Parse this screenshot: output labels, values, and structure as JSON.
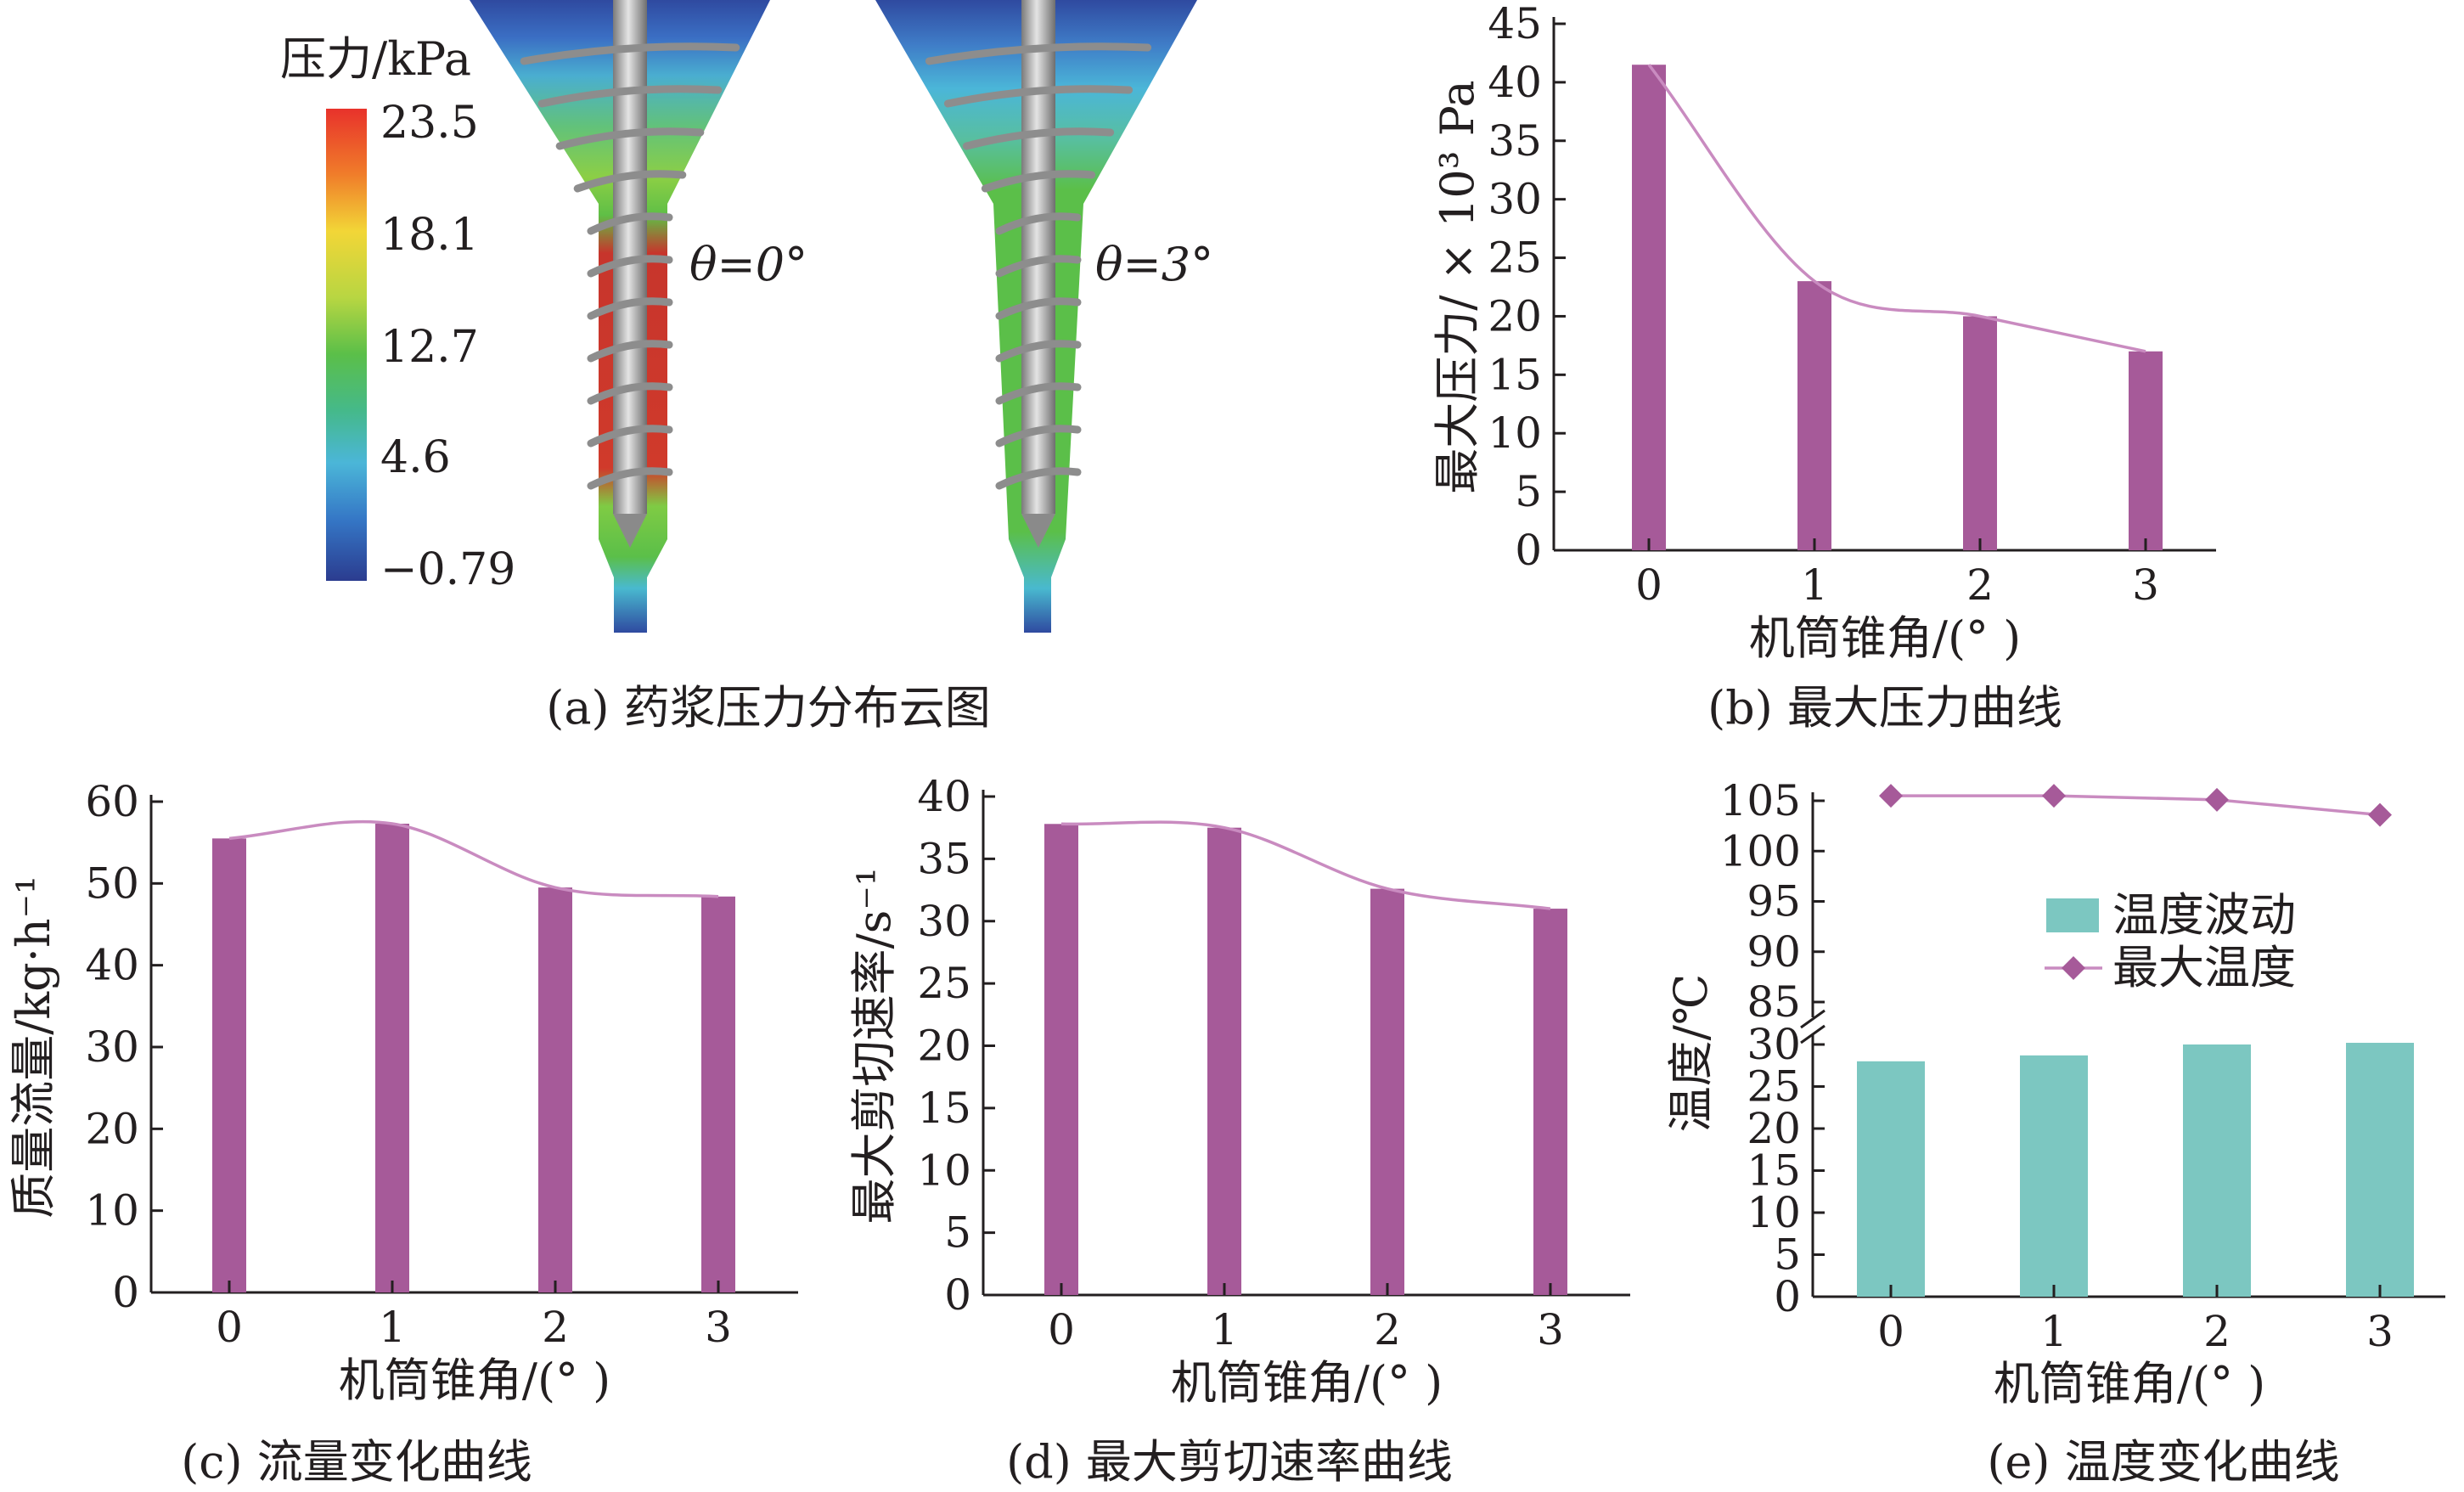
{
  "colors": {
    "bar_purple": "#a65a99",
    "line_purple": "#c98bc0",
    "teal": "#7cc7c1",
    "marker": "#a65a99"
  },
  "panel_a": {
    "caption": "(a) 药浆压力分布云图",
    "colorbar_title": "压力/kPa",
    "colorbar_ticks": [
      "23.5",
      "18.1",
      "12.7",
      "4.6",
      "−0.79"
    ],
    "sim_left_label": "θ=0°",
    "sim_right_label": "θ=3°"
  },
  "chart_data": [
    {
      "id": "b",
      "type": "bar",
      "caption": "(b) 最大压力曲线",
      "xlabel": "机筒锥角/(° )",
      "ylabel": "最大压力/ × 10³ Pa",
      "categories": [
        "0",
        "1",
        "2",
        "3"
      ],
      "values": [
        41.5,
        23,
        20,
        17
      ],
      "ylim": [
        0,
        45
      ],
      "yticks": [
        "0",
        "5",
        "10",
        "15",
        "20",
        "25",
        "30",
        "35",
        "40",
        "45"
      ],
      "trend": "smooth curve",
      "grid": false
    },
    {
      "id": "c",
      "type": "bar",
      "caption": "(c) 流量变化曲线",
      "xlabel": "机筒锥角/(° )",
      "ylabel": "质量流量/kg·h⁻¹",
      "categories": [
        "0",
        "1",
        "2",
        "3"
      ],
      "values": [
        55.5,
        57.3,
        49.5,
        48.4
      ],
      "ylim": [
        0,
        60
      ],
      "yticks": [
        "0",
        "10",
        "20",
        "30",
        "40",
        "50",
        "60"
      ],
      "trend": "smooth curve",
      "grid": false
    },
    {
      "id": "d",
      "type": "bar",
      "caption": "(d) 最大剪切速率曲线",
      "xlabel": "机筒锥角/(° )",
      "ylabel": "最大剪切速率/s⁻¹",
      "categories": [
        "0",
        "1",
        "2",
        "3"
      ],
      "values": [
        37.8,
        37.5,
        32.6,
        31
      ],
      "ylim": [
        0,
        40
      ],
      "yticks": [
        "0",
        "5",
        "10",
        "15",
        "20",
        "25",
        "30",
        "35",
        "40"
      ],
      "trend": "smooth curve",
      "grid": false
    },
    {
      "id": "e",
      "type": "bar",
      "caption": "(e) 温度变化曲线",
      "xlabel": "机筒锥角/(° )",
      "ylabel": "温度/℃",
      "categories": [
        "0",
        "1",
        "2",
        "3"
      ],
      "series": [
        {
          "name": "温度波动",
          "type": "bar",
          "values": [
            28,
            28.7,
            30,
            30.2
          ]
        },
        {
          "name": "最大温度",
          "type": "line",
          "marker": "diamond",
          "values": [
            105.5,
            105.5,
            105.1,
            103.6
          ]
        }
      ],
      "ylim_lower": [
        0,
        30
      ],
      "ylim_upper": [
        85,
        105
      ],
      "yticks_lower": [
        "0",
        "5",
        "10",
        "15",
        "20",
        "25",
        "30"
      ],
      "yticks_upper": [
        "85",
        "90",
        "95",
        "100",
        "105"
      ],
      "broken_axis": true,
      "legend": "top-center",
      "grid": false
    }
  ]
}
